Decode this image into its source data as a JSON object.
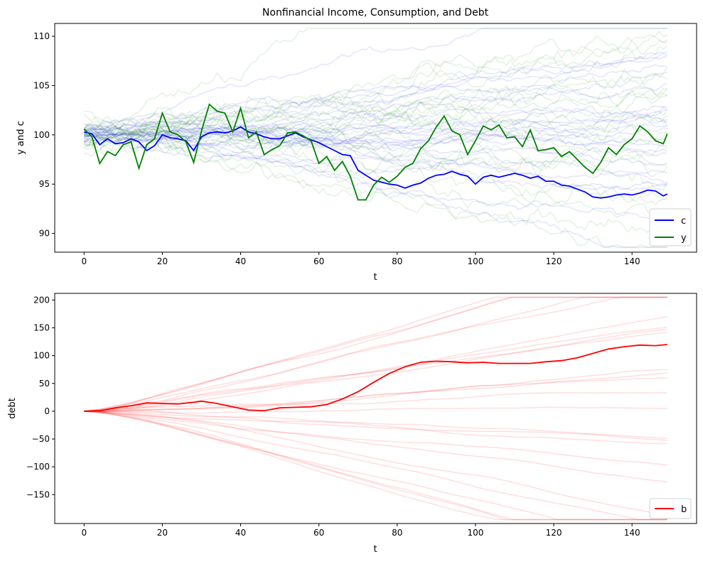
{
  "figure": {
    "title": "Nonfinancial Income, Consumption, and Debt"
  },
  "chart_data": [
    {
      "type": "line",
      "title": "Nonfinancial Income, Consumption, and Debt",
      "xlabel": "t",
      "ylabel": "y and c",
      "xlim": [
        -7.5,
        156.5
      ],
      "ylim": [
        88.1,
        111.3
      ],
      "xticks": [
        0,
        20,
        40,
        60,
        80,
        100,
        120,
        140
      ],
      "yticks": [
        90,
        95,
        100,
        105,
        110
      ],
      "legend_position": "lower right",
      "grid": false,
      "background_paths": {
        "description_note": "",
        "count_blue": 25,
        "count_green": 25,
        "blue_color": "#0000ff",
        "green_color": "#008000",
        "opacity": 0.1
      },
      "series": [
        {
          "name": "c",
          "color": "#0000ff",
          "x": [
            0,
            2,
            4,
            6,
            8,
            10,
            12,
            14,
            16,
            18,
            20,
            22,
            24,
            26,
            28,
            30,
            32,
            34,
            36,
            38,
            40,
            42,
            44,
            46,
            48,
            50,
            52,
            54,
            56,
            58,
            60,
            62,
            64,
            66,
            68,
            70,
            72,
            74,
            76,
            78,
            80,
            82,
            84,
            86,
            88,
            90,
            92,
            94,
            96,
            98,
            100,
            102,
            104,
            106,
            108,
            110,
            112,
            114,
            116,
            118,
            120,
            122,
            124,
            126,
            128,
            130,
            132,
            134,
            136,
            138,
            140,
            142,
            144,
            146,
            148,
            149
          ],
          "values": [
            100.3,
            100.1,
            99.0,
            99.6,
            99.1,
            99.2,
            99.6,
            99.3,
            98.4,
            98.9,
            100.0,
            99.7,
            99.6,
            99.4,
            98.4,
            99.8,
            100.2,
            100.3,
            100.2,
            100.4,
            100.8,
            100.3,
            100.1,
            99.8,
            99.6,
            99.6,
            99.9,
            100.2,
            99.8,
            99.5,
            99.2,
            98.8,
            98.4,
            98.0,
            97.9,
            96.4,
            95.9,
            95.4,
            95.2,
            95.0,
            94.9,
            94.6,
            94.9,
            95.1,
            95.6,
            95.9,
            96.0,
            96.3,
            96.0,
            95.8,
            95.0,
            95.7,
            95.9,
            95.7,
            95.9,
            96.1,
            95.9,
            95.6,
            95.8,
            95.3,
            95.3,
            94.9,
            94.8,
            94.5,
            94.2,
            93.7,
            93.6,
            93.7,
            93.9,
            94.0,
            93.9,
            94.1,
            94.4,
            94.3,
            93.8,
            94.0
          ]
        },
        {
          "name": "y",
          "color": "#008000",
          "x": [
            0,
            2,
            4,
            6,
            8,
            10,
            12,
            14,
            16,
            18,
            20,
            22,
            24,
            26,
            28,
            30,
            32,
            34,
            36,
            38,
            40,
            42,
            44,
            46,
            48,
            50,
            52,
            54,
            56,
            58,
            60,
            62,
            64,
            66,
            68,
            70,
            72,
            74,
            76,
            78,
            80,
            82,
            84,
            86,
            88,
            90,
            92,
            94,
            96,
            98,
            100,
            102,
            104,
            106,
            108,
            110,
            112,
            114,
            116,
            118,
            120,
            122,
            124,
            126,
            128,
            130,
            132,
            134,
            136,
            138,
            140,
            142,
            144,
            146,
            148,
            149
          ],
          "values": [
            100.6,
            99.8,
            97.1,
            98.3,
            97.9,
            99.0,
            99.3,
            96.6,
            99.0,
            99.6,
            102.2,
            100.3,
            100.0,
            99.3,
            97.2,
            100.4,
            103.1,
            102.4,
            102.2,
            100.3,
            102.7,
            99.7,
            100.3,
            98.0,
            98.5,
            98.9,
            100.2,
            100.3,
            99.9,
            99.4,
            97.1,
            97.8,
            96.4,
            97.3,
            95.8,
            93.4,
            93.4,
            94.9,
            95.7,
            95.2,
            95.8,
            96.7,
            97.1,
            98.6,
            99.4,
            100.8,
            101.9,
            100.4,
            100.0,
            98.0,
            99.4,
            100.9,
            100.5,
            101.0,
            99.7,
            99.8,
            98.8,
            100.5,
            98.4,
            98.5,
            98.7,
            97.8,
            98.3,
            97.5,
            96.7,
            96.1,
            97.2,
            98.7,
            98.0,
            99.0,
            99.6,
            100.9,
            100.3,
            99.4,
            99.1,
            100.1
          ]
        }
      ]
    },
    {
      "type": "line",
      "title": "",
      "xlabel": "t",
      "ylabel": "debt",
      "xlim": [
        -7.5,
        156.5
      ],
      "ylim": [
        -202,
        212
      ],
      "xticks": [
        0,
        20,
        40,
        60,
        80,
        100,
        120,
        140
      ],
      "yticks": [
        -150,
        -100,
        -50,
        0,
        50,
        100,
        150,
        200
      ],
      "legend_position": "lower right",
      "grid": false,
      "background_paths": {
        "count_red": 25,
        "red_color": "#ff0000",
        "opacity": 0.12
      },
      "series": [
        {
          "name": "b",
          "color": "#ff0000",
          "x": [
            0,
            4,
            8,
            12,
            16,
            20,
            24,
            28,
            30,
            34,
            38,
            42,
            46,
            50,
            54,
            58,
            62,
            66,
            70,
            74,
            78,
            82,
            86,
            90,
            94,
            98,
            102,
            106,
            110,
            114,
            118,
            122,
            126,
            130,
            134,
            138,
            142,
            146,
            149
          ],
          "values": [
            0,
            1,
            6,
            10,
            15,
            14,
            13,
            16,
            18,
            14,
            8,
            2,
            1,
            6,
            7,
            8,
            12,
            22,
            35,
            52,
            68,
            80,
            88,
            90,
            89,
            87,
            88,
            86,
            86,
            86,
            89,
            91,
            96,
            104,
            112,
            116,
            119,
            118,
            120
          ]
        }
      ]
    }
  ]
}
